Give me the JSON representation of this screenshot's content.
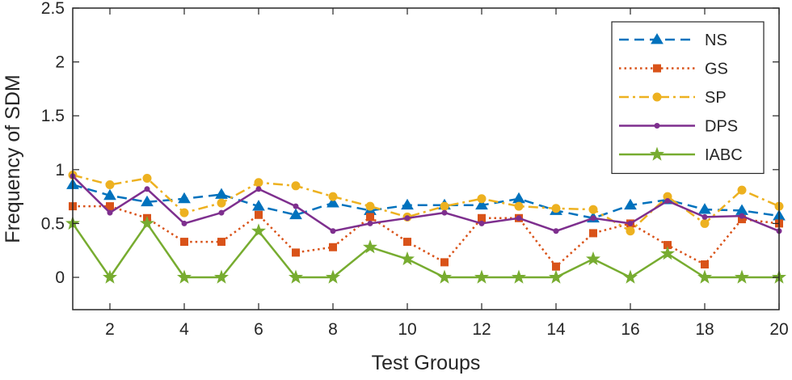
{
  "chart_data": {
    "type": "line",
    "title": "",
    "xlabel": "Test Groups",
    "ylabel": "Frequency of SDM",
    "xlim": [
      1,
      20
    ],
    "ylim": [
      -0.3,
      2.5
    ],
    "xticks": [
      2,
      4,
      6,
      8,
      10,
      12,
      14,
      16,
      18,
      20
    ],
    "yticks": [
      0,
      0.5,
      1,
      1.5,
      2,
      2.5
    ],
    "xtick_labels": [
      "2",
      "4",
      "6",
      "8",
      "10",
      "12",
      "14",
      "16",
      "18",
      "20"
    ],
    "ytick_labels": [
      "0",
      "0.5",
      "1",
      "1.5",
      "2",
      "2.5"
    ],
    "grid": false,
    "legend_position": "top-right",
    "x": [
      1,
      2,
      3,
      4,
      5,
      6,
      7,
      8,
      9,
      10,
      11,
      12,
      13,
      14,
      15,
      16,
      17,
      18,
      19,
      20
    ],
    "series": [
      {
        "name": "NS",
        "color": "#0072bd",
        "dash": "dashed",
        "marker": "triangle",
        "values": [
          0.86,
          0.76,
          0.7,
          0.73,
          0.77,
          0.66,
          0.58,
          0.69,
          0.62,
          0.67,
          0.67,
          0.67,
          0.73,
          0.62,
          0.55,
          0.67,
          0.72,
          0.63,
          0.62,
          0.57
        ]
      },
      {
        "name": "GS",
        "color": "#d95319",
        "dash": "dotted",
        "marker": "square",
        "values": [
          0.66,
          0.66,
          0.55,
          0.33,
          0.33,
          0.58,
          0.23,
          0.28,
          0.56,
          0.33,
          0.14,
          0.55,
          0.55,
          0.1,
          0.41,
          0.5,
          0.3,
          0.12,
          0.54,
          0.5
        ]
      },
      {
        "name": "SP",
        "color": "#edb120",
        "dash": "dashdot",
        "marker": "circle",
        "values": [
          0.95,
          0.86,
          0.92,
          0.6,
          0.69,
          0.88,
          0.85,
          0.75,
          0.66,
          0.56,
          0.66,
          0.73,
          0.66,
          0.64,
          0.63,
          0.43,
          0.75,
          0.5,
          0.81,
          0.66
        ]
      },
      {
        "name": "DPS",
        "color": "#7e2f8e",
        "dash": "solid",
        "marker": "point",
        "values": [
          0.94,
          0.6,
          0.82,
          0.5,
          0.6,
          0.82,
          0.66,
          0.43,
          0.5,
          0.55,
          0.6,
          0.5,
          0.55,
          0.43,
          0.55,
          0.5,
          0.71,
          0.56,
          0.57,
          0.43
        ]
      },
      {
        "name": "IABC",
        "color": "#77ac30",
        "dash": "solid",
        "marker": "star",
        "values": [
          0.5,
          0.0,
          0.5,
          0.0,
          0.0,
          0.43,
          0.0,
          0.0,
          0.28,
          0.17,
          0.0,
          0.0,
          0.0,
          0.0,
          0.17,
          0.0,
          0.22,
          0.0,
          0.0,
          0.0
        ]
      }
    ]
  }
}
